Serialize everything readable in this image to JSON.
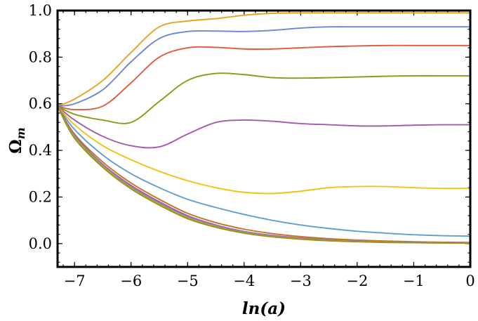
{
  "chart_data": {
    "type": "line",
    "xlabel": "ln(a)",
    "ylabel": "Ω",
    "ylabel_subscript": "m",
    "xlim": [
      -7.3,
      0
    ],
    "ylim": [
      -0.1,
      1.0
    ],
    "x_ticks": [
      -7,
      -6,
      -5,
      -4,
      -3,
      -2,
      -1,
      0
    ],
    "x_tick_labels": [
      "−7",
      "−6",
      "−5",
      "−4",
      "−3",
      "−2",
      "−1",
      "0"
    ],
    "y_ticks": [
      0.0,
      0.2,
      0.4,
      0.6,
      0.8,
      1.0
    ],
    "y_tick_labels": [
      "0.0",
      "0.2",
      "0.4",
      "0.6",
      "0.8",
      "1.0"
    ],
    "x": [
      -7.3,
      -7,
      -6.5,
      -6,
      -5.5,
      -5,
      -4.5,
      -4,
      -3.5,
      -3,
      -2.5,
      -2,
      -1.5,
      -1,
      -0.5,
      0
    ],
    "series": [
      {
        "color": "#e8a21f",
        "values": [
          0.59,
          0.62,
          0.7,
          0.82,
          0.93,
          0.955,
          0.965,
          0.98,
          0.988,
          0.99,
          0.99,
          0.99,
          0.99,
          0.99,
          0.99,
          0.99
        ]
      },
      {
        "color": "#6c87d4",
        "values": [
          0.59,
          0.6,
          0.66,
          0.78,
          0.88,
          0.91,
          0.912,
          0.91,
          0.915,
          0.925,
          0.93,
          0.93,
          0.93,
          0.93,
          0.93,
          0.93
        ]
      },
      {
        "color": "#e05a3a",
        "values": [
          0.59,
          0.575,
          0.59,
          0.69,
          0.8,
          0.84,
          0.842,
          0.835,
          0.835,
          0.84,
          0.845,
          0.848,
          0.85,
          0.85,
          0.85,
          0.85
        ]
      },
      {
        "color": "#8a9a17",
        "values": [
          0.59,
          0.555,
          0.53,
          0.52,
          0.61,
          0.7,
          0.73,
          0.725,
          0.712,
          0.71,
          0.712,
          0.715,
          0.718,
          0.72,
          0.72,
          0.72
        ]
      },
      {
        "color": "#a35aad",
        "values": [
          0.59,
          0.53,
          0.46,
          0.42,
          0.415,
          0.47,
          0.52,
          0.53,
          0.525,
          0.515,
          0.51,
          0.505,
          0.505,
          0.508,
          0.51,
          0.51
        ]
      },
      {
        "color": "#f4c012",
        "values": [
          0.59,
          0.51,
          0.42,
          0.36,
          0.31,
          0.27,
          0.24,
          0.22,
          0.215,
          0.225,
          0.24,
          0.245,
          0.245,
          0.24,
          0.237,
          0.237
        ]
      },
      {
        "color": "#5f9fcf",
        "values": [
          0.59,
          0.49,
          0.38,
          0.3,
          0.24,
          0.19,
          0.155,
          0.125,
          0.1,
          0.08,
          0.065,
          0.053,
          0.045,
          0.038,
          0.034,
          0.032
        ]
      },
      {
        "color": "#c7702a",
        "values": [
          0.59,
          0.47,
          0.35,
          0.26,
          0.19,
          0.13,
          0.09,
          0.062,
          0.043,
          0.03,
          0.021,
          0.015,
          0.011,
          0.008,
          0.006,
          0.005
        ]
      },
      {
        "color": "#b15a91",
        "values": [
          0.59,
          0.465,
          0.34,
          0.25,
          0.18,
          0.12,
          0.08,
          0.052,
          0.035,
          0.024,
          0.016,
          0.011,
          0.008,
          0.006,
          0.004,
          0.003
        ]
      },
      {
        "color": "#7d80d8",
        "values": [
          0.59,
          0.462,
          0.337,
          0.245,
          0.175,
          0.116,
          0.077,
          0.05,
          0.033,
          0.022,
          0.015,
          0.01,
          0.007,
          0.005,
          0.004,
          0.003
        ]
      },
      {
        "color": "#6aa84f",
        "values": [
          0.59,
          0.458,
          0.333,
          0.241,
          0.171,
          0.112,
          0.074,
          0.048,
          0.031,
          0.021,
          0.014,
          0.009,
          0.006,
          0.004,
          0.003,
          0.002
        ]
      },
      {
        "color": "#d9a441",
        "values": [
          0.59,
          0.455,
          0.33,
          0.238,
          0.168,
          0.11,
          0.072,
          0.046,
          0.03,
          0.02,
          0.013,
          0.009,
          0.006,
          0.004,
          0.003,
          0.002
        ]
      },
      {
        "color": "#9c8f1c",
        "values": [
          0.59,
          0.452,
          0.327,
          0.235,
          0.165,
          0.107,
          0.07,
          0.045,
          0.029,
          0.019,
          0.012,
          0.008,
          0.005,
          0.004,
          0.003,
          0.002
        ]
      }
    ]
  }
}
